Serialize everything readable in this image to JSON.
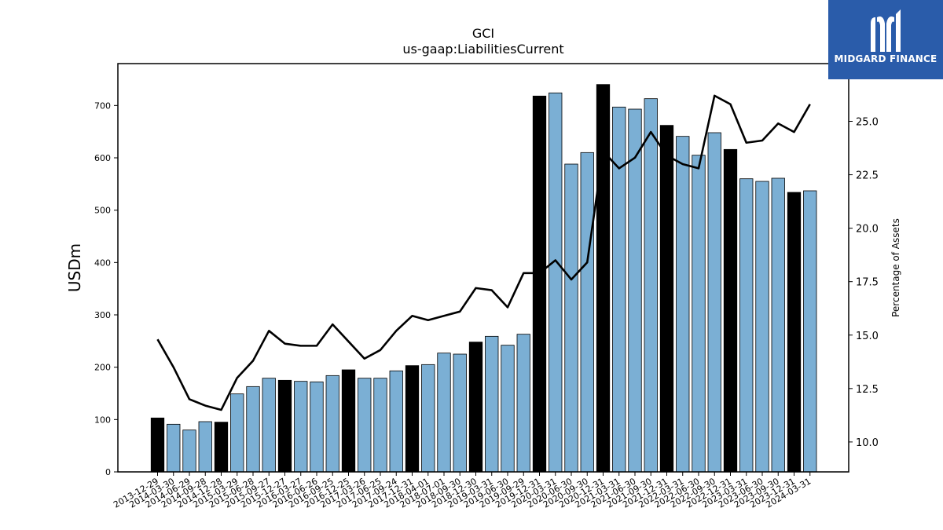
{
  "logo": {
    "text": "MIDGARD FINANCE",
    "icon": "m-letter-icon",
    "bg_color": "#2a5caa"
  },
  "colors": {
    "bar_default": "#7bafd4",
    "bar_highlight": "#000000",
    "line": "#000000"
  },
  "chart_data": {
    "type": "bar",
    "title": "GCI",
    "subtitle": "us-gaap:LiabilitiesCurrent",
    "ylabel": "USDm",
    "y2label": "Percentage of Assets",
    "ylim": [
      0,
      780
    ],
    "y2lim": [
      8.6,
      27.7
    ],
    "yticks": [
      0,
      100,
      200,
      300,
      400,
      500,
      600,
      700
    ],
    "y2ticks": [
      10.0,
      12.5,
      15.0,
      17.5,
      20.0,
      22.5,
      25.0
    ],
    "categories": [
      "2013-12-29",
      "2014-03-30",
      "2014-06-29",
      "2014-09-28",
      "2014-12-28",
      "2015-03-29",
      "2015-06-28",
      "2015-09-27",
      "2015-12-27",
      "2016-03-27",
      "2016-06-26",
      "2016-09-25",
      "2016-12-25",
      "2017-03-26",
      "2017-06-25",
      "2017-09-24",
      "2017-12-31",
      "2018-04-01",
      "2018-07-01",
      "2018-09-30",
      "2018-12-30",
      "2019-03-31",
      "2019-06-30",
      "2019-09-29",
      "2019-12-31",
      "2020-03-31",
      "2020-06-30",
      "2020-09-30",
      "2020-12-31",
      "2021-03-31",
      "2021-06-30",
      "2021-09-30",
      "2021-12-31",
      "2022-03-31",
      "2022-06-30",
      "2022-09-30",
      "2022-12-31",
      "2023-03-31",
      "2023-06-30",
      "2023-09-30",
      "2023-12-31",
      "2024-03-31"
    ],
    "series": [
      {
        "type": "bar",
        "values": [
          103,
          91,
          80,
          96,
          95,
          149,
          163,
          179,
          175,
          173,
          172,
          184,
          195,
          179,
          179,
          193,
          203,
          205,
          227,
          225,
          248,
          259,
          242,
          263,
          718,
          724,
          588,
          610,
          740,
          697,
          693,
          713,
          662,
          641,
          605,
          648,
          616,
          560,
          555,
          561,
          534,
          537
        ],
        "highlight": [
          true,
          false,
          false,
          false,
          true,
          false,
          false,
          false,
          true,
          false,
          false,
          false,
          true,
          false,
          false,
          false,
          true,
          false,
          false,
          false,
          true,
          false,
          false,
          false,
          true,
          false,
          false,
          false,
          true,
          false,
          false,
          false,
          true,
          false,
          false,
          false,
          true,
          false,
          false,
          false,
          true,
          false
        ]
      },
      {
        "type": "line",
        "axis": "right",
        "values": [
          14.8,
          13.5,
          12.0,
          11.7,
          11.5,
          13.0,
          13.8,
          15.2,
          14.6,
          14.5,
          14.5,
          15.5,
          14.7,
          13.9,
          14.3,
          15.2,
          15.9,
          15.7,
          15.9,
          16.1,
          17.2,
          17.1,
          16.3,
          17.9,
          17.9,
          18.5,
          17.6,
          18.4,
          23.6,
          22.8,
          23.3,
          24.5,
          23.4,
          23.0,
          22.8,
          26.2,
          25.8,
          24.0,
          24.1,
          24.9,
          24.5,
          25.8
        ]
      }
    ]
  }
}
